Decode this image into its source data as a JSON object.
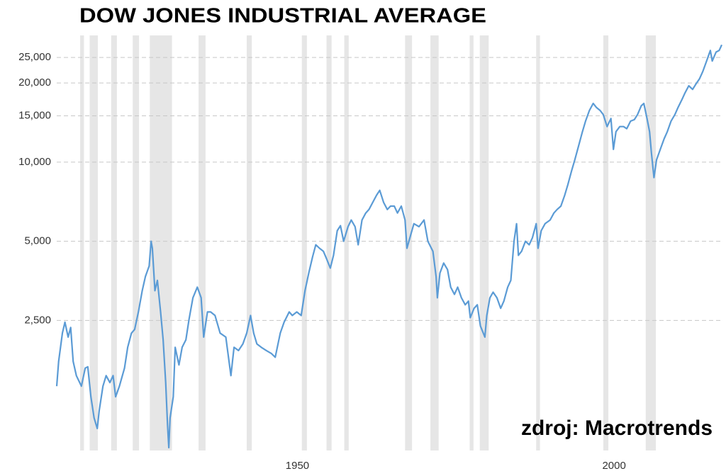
{
  "chart_data": {
    "type": "line",
    "title": "DOW JONES INDUSTRIAL AVERAGE",
    "source": "zdroj: Macrotrends",
    "log_scale": true,
    "grid": true,
    "xlim": [
      1912,
      2017
    ],
    "xticks": [
      1950,
      2000
    ],
    "ylim": [
      800,
      28500
    ],
    "yticks": [
      {
        "value": 2500,
        "label": "2,500"
      },
      {
        "value": 5000,
        "label": "5,000"
      },
      {
        "value": 10000,
        "label": "10,000"
      },
      {
        "value": 15000,
        "label": "15,000"
      },
      {
        "value": 20000,
        "label": "20,000"
      },
      {
        "value": 25000,
        "label": "25,000"
      }
    ],
    "shade_color": "#e6e6e6",
    "shaded_periods": [
      [
        1915.7,
        1916.3
      ],
      [
        1917.2,
        1918.5
      ],
      [
        1920.6,
        1921.5
      ],
      [
        1924.0,
        1925.0
      ],
      [
        1926.7,
        1930.2
      ],
      [
        1934.4,
        1935.5
      ],
      [
        1942.0,
        1942.8
      ],
      [
        1950.7,
        1951.5
      ],
      [
        1954.6,
        1955.4
      ],
      [
        1957.4,
        1958.1
      ],
      [
        1967.0,
        1968.1
      ],
      [
        1971.0,
        1972.3
      ],
      [
        1977.2,
        1977.8
      ],
      [
        1978.8,
        1980.2
      ],
      [
        1987.7,
        1988.3
      ],
      [
        1998.3,
        1999.1
      ],
      [
        2005.0,
        2006.6
      ]
    ],
    "series": [
      {
        "name": "Dow Jones",
        "color": "#5b9bd5",
        "x": [
          1912.0,
          1912.3,
          1912.9,
          1913.3,
          1913.8,
          1914.2,
          1914.6,
          1915.1,
          1915.9,
          1916.5,
          1916.9,
          1917.4,
          1917.9,
          1918.4,
          1918.7,
          1919.3,
          1919.8,
          1920.4,
          1920.9,
          1921.3,
          1921.9,
          1922.7,
          1923.2,
          1923.8,
          1924.3,
          1924.9,
          1925.5,
          1926.0,
          1926.6,
          1926.9,
          1927.1,
          1927.5,
          1927.9,
          1928.4,
          1928.8,
          1929.2,
          1929.5,
          1929.7,
          1929.9,
          1930.4,
          1930.7,
          1931.3,
          1931.8,
          1932.4,
          1932.9,
          1933.5,
          1934.2,
          1934.8,
          1935.2,
          1935.8,
          1936.3,
          1937.0,
          1937.8,
          1938.7,
          1939.5,
          1940.0,
          1940.7,
          1941.4,
          1942.0,
          1942.6,
          1943.1,
          1943.6,
          1944.3,
          1945.1,
          1945.9,
          1946.5,
          1947.3,
          1947.9,
          1948.7,
          1949.2,
          1949.9,
          1950.6,
          1951.2,
          1951.8,
          1952.4,
          1952.9,
          1953.5,
          1954.1,
          1954.6,
          1955.2,
          1955.7,
          1956.3,
          1956.8,
          1957.3,
          1958.0,
          1958.5,
          1959.1,
          1959.6,
          1960.2,
          1960.8,
          1961.3,
          1961.9,
          1962.5,
          1963.0,
          1963.6,
          1964.2,
          1964.7,
          1965.3,
          1965.8,
          1966.4,
          1967.0,
          1967.3,
          1967.9,
          1968.4,
          1969.2,
          1970.0,
          1970.6,
          1971.4,
          1971.9,
          1972.1,
          1972.5,
          1973.1,
          1973.7,
          1974.2,
          1974.8,
          1975.3,
          1975.9,
          1976.5,
          1977.0,
          1977.3,
          1977.9,
          1978.4,
          1978.9,
          1979.6,
          1979.9,
          1980.4,
          1980.9,
          1981.5,
          1982.1,
          1982.6,
          1983.2,
          1983.7,
          1984.2,
          1984.6,
          1984.9,
          1985.4,
          1986.0,
          1986.6,
          1987.1,
          1987.7,
          1988.0,
          1988.5,
          1989.1,
          1989.9,
          1990.5,
          1991.0,
          1991.6,
          1992.2,
          1992.7,
          1993.3,
          1993.8,
          1994.4,
          1995.0,
          1995.5,
          1996.1,
          1996.7,
          1997.2,
          1997.8,
          1998.3,
          1998.9,
          1999.5,
          1999.9,
          2000.3,
          2000.9,
          2001.5,
          2002.0,
          2002.6,
          2003.2,
          2003.7,
          2004.3,
          2004.7,
          2005.2,
          2005.6,
          2005.9,
          2006.3,
          2006.7,
          2007.3,
          2007.9,
          2008.4,
          2009.0,
          2009.6,
          2010.1,
          2010.7,
          2011.2,
          2011.8,
          2012.4,
          2012.9,
          2013.5,
          2014.0,
          2014.6,
          2015.2,
          2015.5,
          2016.1,
          2016.6,
          2017.0
        ],
        "values": [
          1405,
          1745,
          2236,
          2460,
          2160,
          2350,
          1745,
          1541,
          1405,
          1646,
          1665,
          1281,
          1065,
          970,
          1133,
          1405,
          1541,
          1450,
          1541,
          1281,
          1405,
          1646,
          1975,
          2236,
          2310,
          2692,
          3242,
          3670,
          4026,
          5000,
          4700,
          3242,
          3550,
          2692,
          2110,
          1450,
          1000,
          820,
          1065,
          1281,
          1975,
          1692,
          1975,
          2110,
          2530,
          3048,
          3344,
          3048,
          2160,
          2692,
          2692,
          2610,
          2236,
          2160,
          1541,
          1975,
          1920,
          2035,
          2236,
          2610,
          2236,
          2035,
          1975,
          1920,
          1870,
          1810,
          2236,
          2460,
          2692,
          2610,
          2692,
          2610,
          3242,
          3785,
          4364,
          4847,
          4700,
          4580,
          4290,
          3953,
          4420,
          5487,
          5730,
          5000,
          5680,
          6020,
          5680,
          4847,
          6020,
          6405,
          6600,
          7030,
          7480,
          7810,
          7030,
          6600,
          6800,
          6800,
          6405,
          6800,
          6020,
          4700,
          5300,
          5830,
          5680,
          6020,
          5000,
          4580,
          3670,
          3048,
          3785,
          4130,
          3900,
          3344,
          3140,
          3344,
          3048,
          2865,
          2960,
          2560,
          2780,
          2865,
          2380,
          2160,
          2610,
          3048,
          3200,
          3048,
          2780,
          2960,
          3344,
          3550,
          5000,
          5830,
          4420,
          4580,
          5000,
          4847,
          5150,
          5830,
          4700,
          5487,
          5830,
          6020,
          6405,
          6600,
          6800,
          7480,
          8200,
          9285,
          10190,
          11530,
          13050,
          14320,
          15710,
          16720,
          16150,
          15710,
          15160,
          13650,
          14650,
          11180,
          13050,
          13650,
          13650,
          13400,
          14320,
          14500,
          15160,
          16380,
          16720,
          14650,
          13050,
          10840,
          8730,
          10190,
          11180,
          12260,
          13050,
          14320,
          15160,
          16150,
          17250,
          18340,
          19510,
          18900,
          19780,
          20760,
          22080,
          24230,
          26580,
          24230,
          26210,
          26580,
          27930
        ]
      }
    ]
  }
}
